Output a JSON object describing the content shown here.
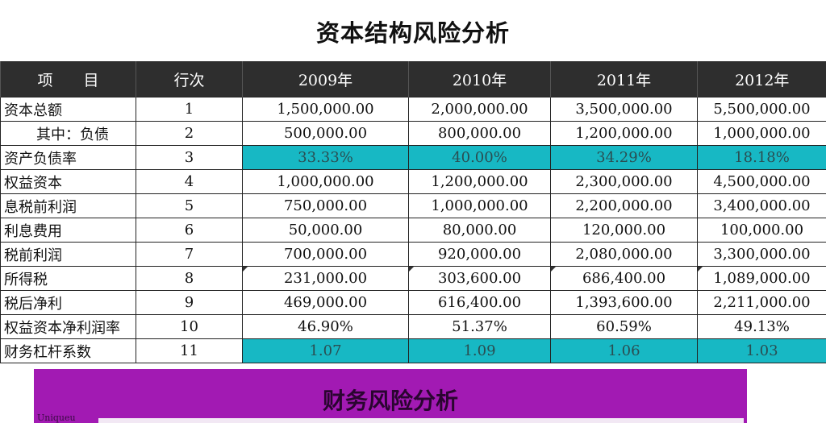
{
  "title": "资本结构风险分析",
  "table": {
    "headers": [
      "项　　目",
      "行次",
      "2009年",
      "2010年",
      "2011年",
      "2012年"
    ],
    "rows": [
      {
        "label": "资本总额",
        "line": "1",
        "values": [
          "1,500,000.00",
          "2,000,000.00",
          "3,500,000.00",
          "5,500,000.00"
        ]
      },
      {
        "label": "其中：负债",
        "line": "2",
        "values": [
          "500,000.00",
          "800,000.00",
          "1,200,000.00",
          "1,000,000.00"
        ]
      },
      {
        "label": "资产负债率",
        "line": "3",
        "values": [
          "33.33%",
          "40.00%",
          "34.29%",
          "18.18%"
        ]
      },
      {
        "label": "权益资本",
        "line": "4",
        "values": [
          "1,000,000.00",
          "1,200,000.00",
          "2,300,000.00",
          "4,500,000.00"
        ]
      },
      {
        "label": "息税前利润",
        "line": "5",
        "values": [
          "750,000.00",
          "1,000,000.00",
          "2,200,000.00",
          "3,400,000.00"
        ]
      },
      {
        "label": "利息费用",
        "line": "6",
        "values": [
          "50,000.00",
          "80,000.00",
          "120,000.00",
          "100,000.00"
        ]
      },
      {
        "label": "税前利润",
        "line": "7",
        "values": [
          "700,000.00",
          "920,000.00",
          "2,080,000.00",
          "3,300,000.00"
        ]
      },
      {
        "label": "所得税",
        "line": "8",
        "values": [
          "231,000.00",
          "303,600.00",
          "686,400.00",
          "1,089,000.00"
        ]
      },
      {
        "label": "税后净利",
        "line": "9",
        "values": [
          "469,000.00",
          "616,400.00",
          "1,393,600.00",
          "2,211,000.00"
        ]
      },
      {
        "label": "权益资本净利润率",
        "line": "10",
        "values": [
          "46.90%",
          "51.37%",
          "60.59%",
          "49.13%"
        ]
      },
      {
        "label": "财务杠杆系数",
        "line": "11",
        "values": [
          "1.07",
          "1.09",
          "1.06",
          "1.03"
        ]
      }
    ]
  },
  "section2": {
    "title": "财务风险分析",
    "small_text": "Uniqueu"
  },
  "colors": {
    "header_bg": "#2e2e2e",
    "highlight_teal": "#17b8c4",
    "banner_purple": "#a21ab3"
  }
}
